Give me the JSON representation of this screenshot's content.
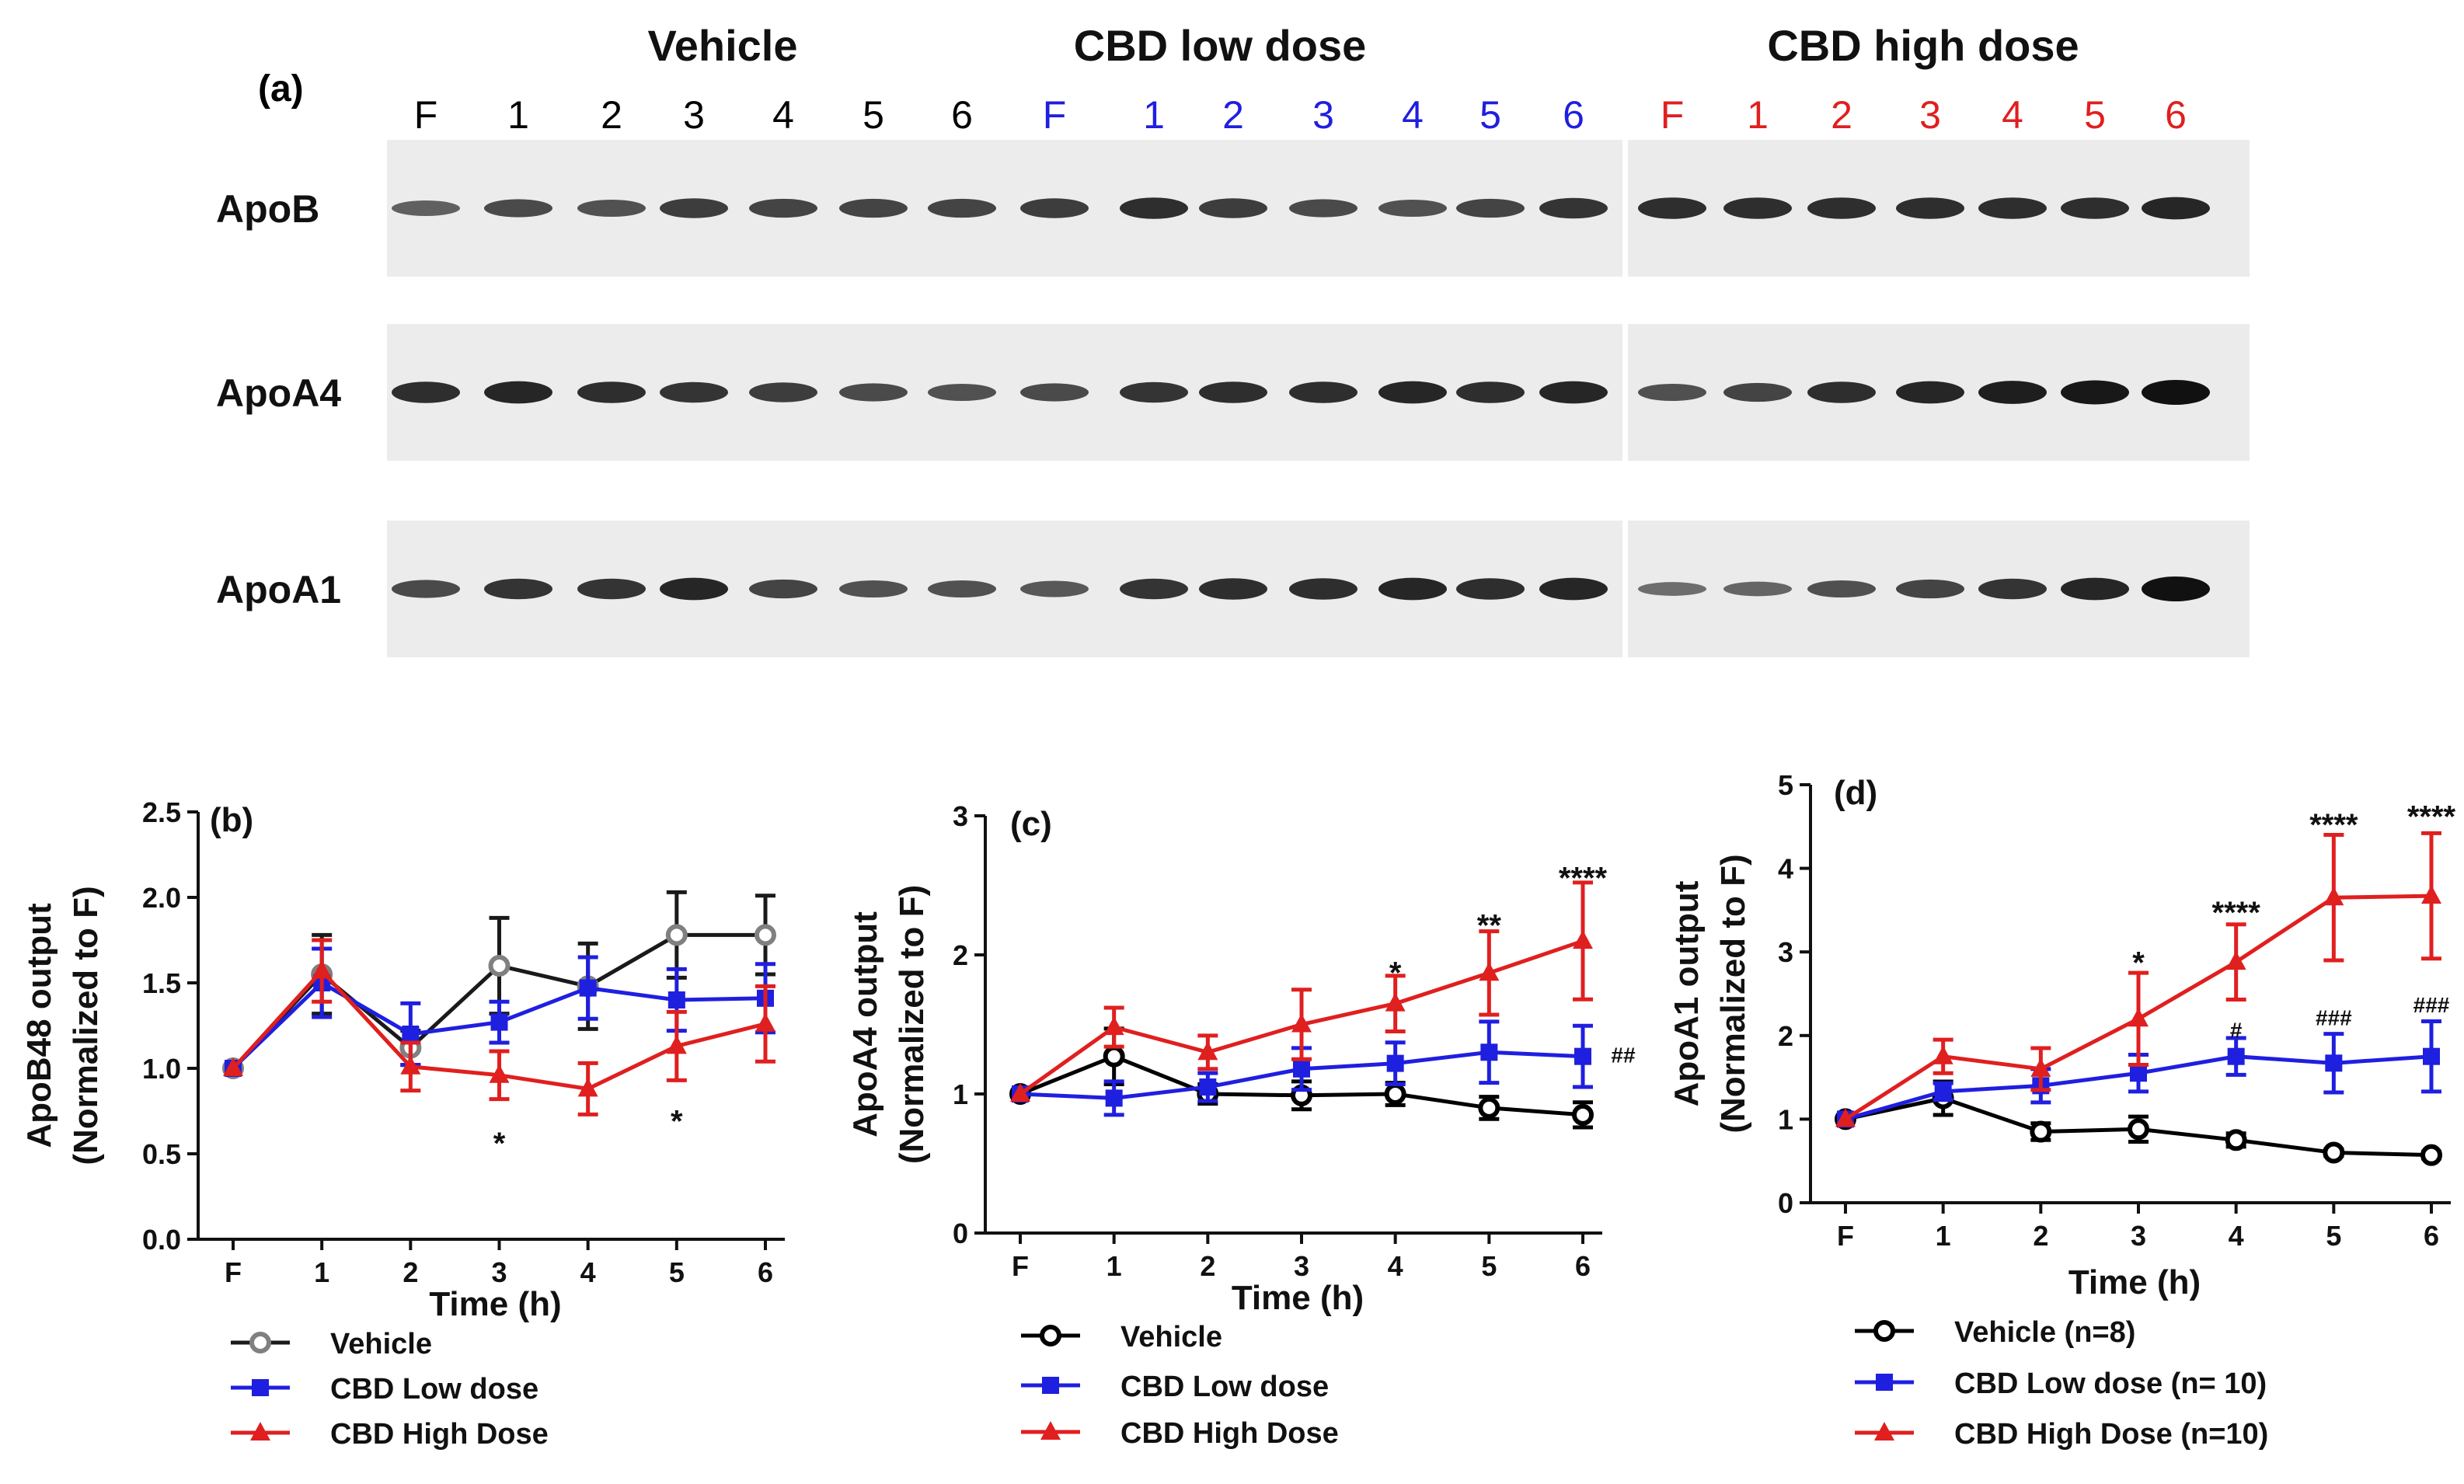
{
  "panel_a": {
    "label": "(a)",
    "groups": [
      {
        "name": "Vehicle",
        "color": "#000000",
        "lanes": [
          "F",
          "1",
          "2",
          "3",
          "4",
          "5",
          "6"
        ]
      },
      {
        "name": "CBD low dose",
        "color": "#1f1fe0",
        "lanes": [
          "F",
          "1",
          "2",
          "3",
          "4",
          "5",
          "6"
        ]
      },
      {
        "name": "CBD high dose",
        "color": "#e01f1f",
        "lanes": [
          "F",
          "1",
          "2",
          "3",
          "4",
          "5",
          "6"
        ]
      }
    ],
    "blots": [
      {
        "name": "ApoB",
        "intensity": [
          0.45,
          0.6,
          0.55,
          0.7,
          0.65,
          0.65,
          0.65,
          0.7,
          0.8,
          0.7,
          0.6,
          0.55,
          0.65,
          0.75,
          0.8,
          0.8,
          0.8,
          0.8,
          0.8,
          0.8,
          0.85
        ]
      },
      {
        "name": "ApoA4",
        "intensity": [
          0.8,
          0.85,
          0.8,
          0.75,
          0.7,
          0.6,
          0.55,
          0.6,
          0.75,
          0.8,
          0.8,
          0.85,
          0.8,
          0.85,
          0.55,
          0.65,
          0.8,
          0.85,
          0.9,
          0.95,
          1.0
        ]
      },
      {
        "name": "ApoA1",
        "intensity": [
          0.6,
          0.75,
          0.75,
          0.85,
          0.65,
          0.55,
          0.55,
          0.5,
          0.75,
          0.8,
          0.8,
          0.85,
          0.8,
          0.85,
          0.35,
          0.4,
          0.55,
          0.65,
          0.75,
          0.85,
          1.0
        ]
      }
    ]
  },
  "chart_data": [
    {
      "type": "line",
      "panel_label": "(b)",
      "ylabel_line1": "ApoB48 output",
      "ylabel_line2": "(Normalized to F)",
      "xlabel": "Time (h)",
      "categories": [
        "F",
        "1",
        "2",
        "3",
        "4",
        "5",
        "6"
      ],
      "ylim": [
        0,
        2.5
      ],
      "yticks": [
        "0.0",
        "0.5",
        "1.0",
        "1.5",
        "2.0",
        "2.5"
      ],
      "series": [
        {
          "name": "Vehicle",
          "color": "#1a1a1a",
          "marker": "circle-gray",
          "values": [
            1.0,
            1.55,
            1.12,
            1.6,
            1.48,
            1.78,
            1.78
          ],
          "errors": [
            0,
            0.23,
            0.1,
            0.28,
            0.25,
            0.25,
            0.23
          ]
        },
        {
          "name": "CBD Low dose",
          "color": "#1f1fe0",
          "marker": "square",
          "values": [
            1.0,
            1.5,
            1.2,
            1.27,
            1.47,
            1.4,
            1.41
          ],
          "errors": [
            0,
            0.2,
            0.18,
            0.12,
            0.18,
            0.18,
            0.2
          ]
        },
        {
          "name": "CBD High Dose",
          "color": "#e01f1f",
          "marker": "triangle",
          "values": [
            1.0,
            1.57,
            1.01,
            0.96,
            0.88,
            1.13,
            1.26
          ],
          "errors": [
            0,
            0.18,
            0.14,
            0.14,
            0.15,
            0.2,
            0.22
          ]
        }
      ],
      "annotations": [
        {
          "text": "*",
          "x": "3",
          "y": 0.6
        },
        {
          "text": "*",
          "x": "5",
          "y": 0.73
        }
      ]
    },
    {
      "type": "line",
      "panel_label": "(c)",
      "ylabel_line1": "ApoA4 output",
      "ylabel_line2": "(Normalized to F)",
      "xlabel": "Time (h)",
      "categories": [
        "F",
        "1",
        "2",
        "3",
        "4",
        "5",
        "6"
      ],
      "ylim": [
        0,
        3
      ],
      "yticks": [
        "0",
        "1",
        "2",
        "3"
      ],
      "series": [
        {
          "name": "Vehicle",
          "color": "#000000",
          "marker": "circle-open",
          "values": [
            1.0,
            1.27,
            1.0,
            0.99,
            1.0,
            0.9,
            0.85
          ],
          "errors": [
            0,
            0.2,
            0.07,
            0.1,
            0.08,
            0.08,
            0.09
          ]
        },
        {
          "name": "CBD Low dose",
          "color": "#1f1fe0",
          "marker": "square",
          "values": [
            1.0,
            0.97,
            1.05,
            1.18,
            1.22,
            1.3,
            1.27
          ],
          "errors": [
            0,
            0.12,
            0.1,
            0.15,
            0.15,
            0.22,
            0.22
          ]
        },
        {
          "name": "CBD High Dose",
          "color": "#e01f1f",
          "marker": "triangle",
          "values": [
            1.0,
            1.48,
            1.3,
            1.5,
            1.65,
            1.87,
            2.1
          ],
          "errors": [
            0,
            0.14,
            0.12,
            0.25,
            0.2,
            0.3,
            0.42
          ]
        }
      ],
      "annotations": [
        {
          "text": "*",
          "x": "4",
          "y": 1.92
        },
        {
          "text": "**",
          "x": "5",
          "y": 2.26
        },
        {
          "text": "****",
          "x": "6",
          "y": 2.6
        },
        {
          "text": "##",
          "x": "6",
          "y": 1.27,
          "offset": "right"
        }
      ]
    },
    {
      "type": "line",
      "panel_label": "(d)",
      "ylabel_line1": "ApoA1 output",
      "ylabel_line2": "(Normalized to F)",
      "xlabel": "Time (h)",
      "categories": [
        "F",
        "1",
        "2",
        "3",
        "4",
        "5",
        "6"
      ],
      "ylim": [
        0,
        5
      ],
      "yticks": [
        "0",
        "1",
        "2",
        "3",
        "4",
        "5"
      ],
      "series": [
        {
          "name": "Vehicle (n=8)",
          "color": "#000000",
          "marker": "circle-open",
          "values": [
            1.0,
            1.25,
            0.85,
            0.88,
            0.75,
            0.6,
            0.57
          ],
          "errors": [
            0,
            0.2,
            0.1,
            0.15,
            0.08,
            0.04,
            0.04
          ]
        },
        {
          "name": "CBD Low dose (n= 10)",
          "color": "#1f1fe0",
          "marker": "square",
          "values": [
            1.0,
            1.33,
            1.4,
            1.55,
            1.75,
            1.67,
            1.75
          ],
          "errors": [
            0,
            0.1,
            0.2,
            0.22,
            0.22,
            0.35,
            0.42
          ]
        },
        {
          "name": "CBD High Dose (n=10)",
          "color": "#e01f1f",
          "marker": "triangle",
          "values": [
            1.0,
            1.75,
            1.6,
            2.2,
            2.88,
            3.65,
            3.67
          ],
          "errors": [
            0,
            0.2,
            0.25,
            0.55,
            0.45,
            0.75,
            0.75
          ]
        }
      ],
      "annotations": [
        {
          "text": "*",
          "x": "3",
          "y": 2.95
        },
        {
          "text": "****",
          "x": "4",
          "y": 3.55
        },
        {
          "text": "#",
          "x": "4",
          "y": 2.05
        },
        {
          "text": "****",
          "x": "5",
          "y": 4.6
        },
        {
          "text": "###",
          "x": "5",
          "y": 2.2
        },
        {
          "text": "****",
          "x": "6",
          "y": 4.7
        },
        {
          "text": "###",
          "x": "6",
          "y": 2.35
        }
      ]
    }
  ]
}
